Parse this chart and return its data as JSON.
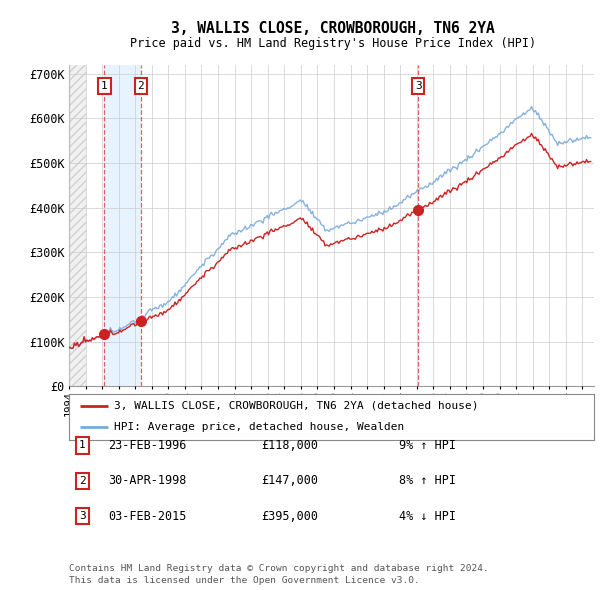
{
  "title": "3, WALLIS CLOSE, CROWBOROUGH, TN6 2YA",
  "subtitle": "Price paid vs. HM Land Registry's House Price Index (HPI)",
  "ylim": [
    0,
    720000
  ],
  "yticks": [
    0,
    100000,
    200000,
    300000,
    400000,
    500000,
    600000,
    700000
  ],
  "ytick_labels": [
    "£0",
    "£100K",
    "£200K",
    "£300K",
    "£400K",
    "£500K",
    "£600K",
    "£700K"
  ],
  "xlim_start": 1994.0,
  "xlim_end": 2025.7,
  "hatch_end": 1995.0,
  "shade_start": 1996.14,
  "shade_end": 1998.33,
  "transactions": [
    {
      "date": 1996.14,
      "price": 118000,
      "label": "1"
    },
    {
      "date": 1998.33,
      "price": 147000,
      "label": "2"
    },
    {
      "date": 2015.09,
      "price": 395000,
      "label": "3"
    }
  ],
  "legend_house": "3, WALLIS CLOSE, CROWBOROUGH, TN6 2YA (detached house)",
  "legend_hpi": "HPI: Average price, detached house, Wealden",
  "table_rows": [
    {
      "num": "1",
      "date": "23-FEB-1996",
      "price": "£118,000",
      "hpi": "9% ↑ HPI"
    },
    {
      "num": "2",
      "date": "30-APR-1998",
      "price": "£147,000",
      "hpi": "8% ↑ HPI"
    },
    {
      "num": "3",
      "date": "03-FEB-2015",
      "price": "£395,000",
      "hpi": "4% ↓ HPI"
    }
  ],
  "footer": "Contains HM Land Registry data © Crown copyright and database right 2024.\nThis data is licensed under the Open Government Licence v3.0.",
  "hpi_color": "#7aaadd",
  "house_color": "#cc2222",
  "vline_color": "#dd4444",
  "box_color": "#cc2222",
  "grid_color": "#cccccc",
  "shade_color": "#ddeeff",
  "hatch_color": "#cccccc",
  "background_color": "#ffffff"
}
